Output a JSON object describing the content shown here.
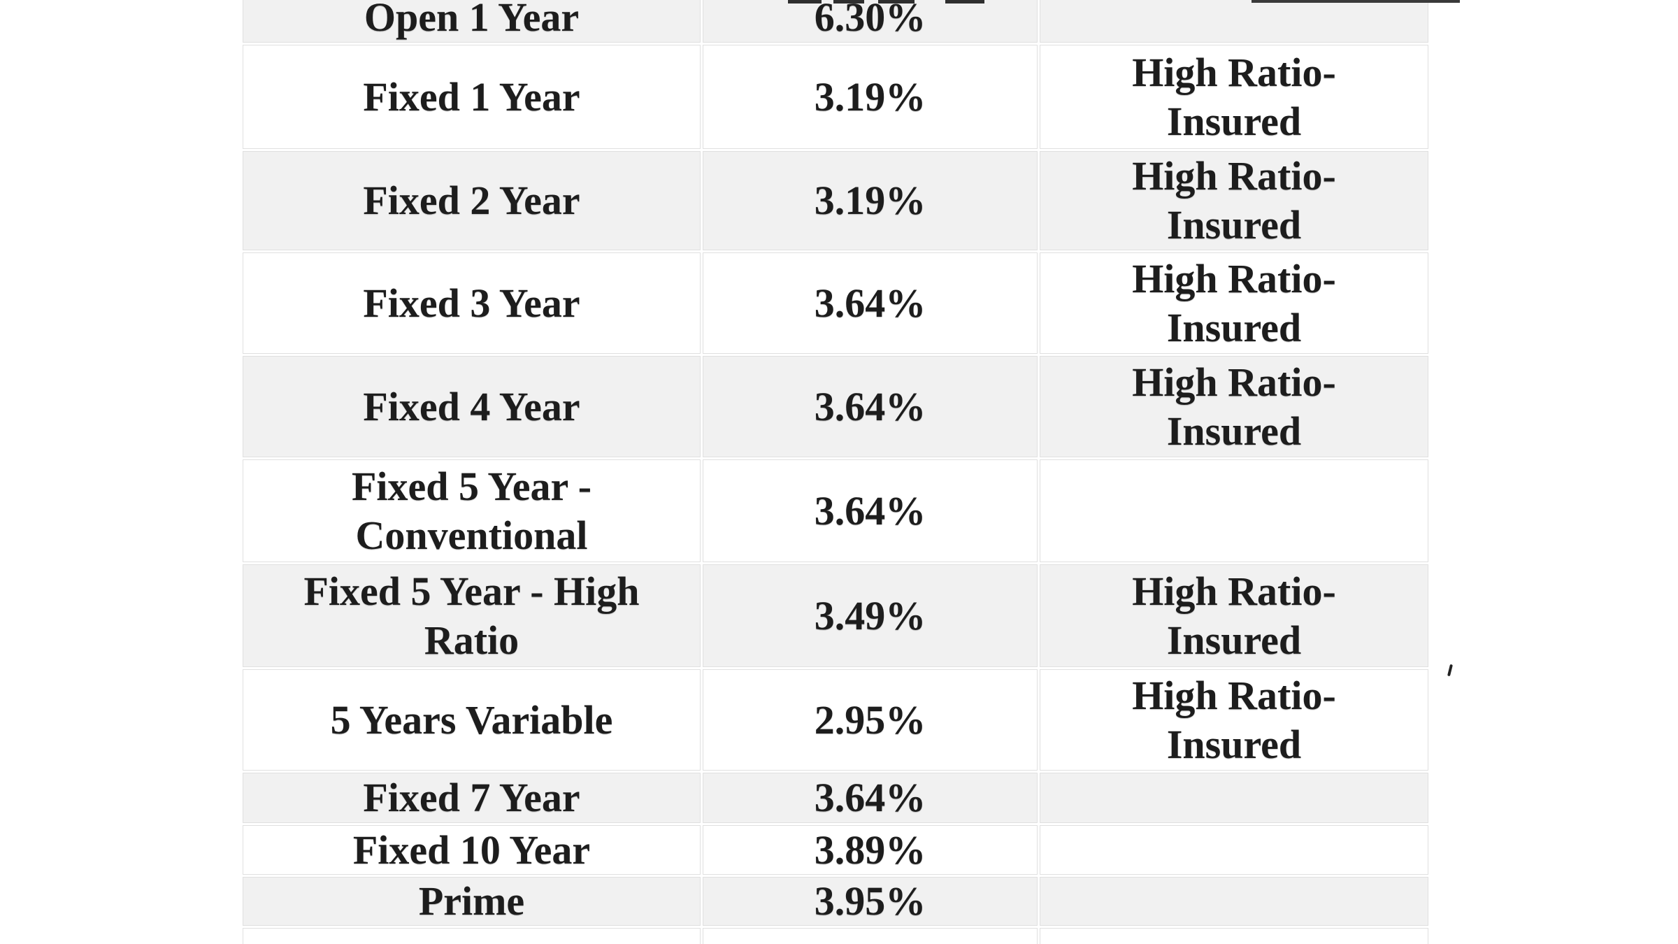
{
  "page": {
    "background_color": "#ffffff"
  },
  "table": {
    "description": "mortgage-rate-table",
    "stripe_color": "#f1f1f1",
    "row_alt_color": "#ffffff",
    "border_color": "#e0e0e0",
    "text_color": "#1d1d1d",
    "columns": [
      "term",
      "rate",
      "note"
    ],
    "rows": [
      {
        "term": "Open 1 Year",
        "rate": "6.30%",
        "note": ""
      },
      {
        "term": "Fixed 1 Year",
        "rate": "3.19%",
        "note": "High Ratio-Insured"
      },
      {
        "term": "Fixed 2 Year",
        "rate": "3.19%",
        "note": "High Ratio-Insured"
      },
      {
        "term": "Fixed 3 Year",
        "rate": "3.64%",
        "note": "High Ratio-Insured"
      },
      {
        "term": "Fixed 4 Year",
        "rate": "3.64%",
        "note": "High Ratio-Insured"
      },
      {
        "term": "Fixed 5 Year - Conventional",
        "rate": "3.64%",
        "note": ""
      },
      {
        "term": "Fixed 5 Year - High Ratio",
        "rate": "3.49%",
        "note": "High Ratio-Insured"
      },
      {
        "term": "5 Years Variable",
        "rate": "2.95%",
        "note": "High Ratio-Insured"
      },
      {
        "term": "Fixed 7 Year",
        "rate": "3.64%",
        "note": ""
      },
      {
        "term": "Fixed 10 Year",
        "rate": "3.89%",
        "note": ""
      },
      {
        "term": "Prime",
        "rate": "3.95%",
        "note": ""
      },
      {
        "term": "",
        "rate": "",
        "note": ""
      }
    ]
  }
}
